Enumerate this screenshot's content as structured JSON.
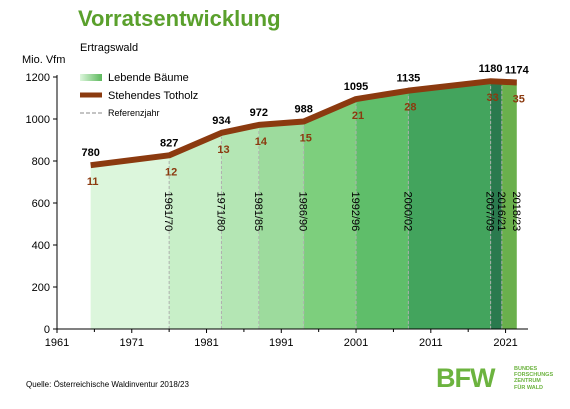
{
  "title": "Vorratsentwicklung",
  "subtitle": "Ertragswald",
  "source": "Quelle: Österreichische Waldinventur 2018/23",
  "logo": {
    "letters": "BFW",
    "lines": [
      "BUNDES",
      "FORSCHUNGS",
      "ZENTRUM",
      "FÜR WALD"
    ]
  },
  "chart_data": {
    "type": "area",
    "ylabel": "Mio. Vfm",
    "xlim": [
      1961,
      2024
    ],
    "ylim": [
      0,
      1200
    ],
    "x_ticks": [
      1961,
      1971,
      1981,
      1991,
      2001,
      2011,
      2021
    ],
    "y_ticks": [
      0,
      200,
      400,
      600,
      800,
      1000,
      1200
    ],
    "grid": false,
    "legend_position": "top-left",
    "legend": [
      {
        "label": "Lebende Bäume",
        "color": "#5cb85c"
      },
      {
        "label": "Stehendes Totholz",
        "color": "#8b3a0f"
      },
      {
        "label": "Referenzjahr",
        "color": "#a0a0a0"
      }
    ],
    "periods": [
      {
        "label": "1961/70",
        "start": 1965.5,
        "end": 1976,
        "total": 780,
        "deadwood": 11,
        "color": "#dcf6dc"
      },
      {
        "label": "1971/80",
        "start": 1976,
        "end": 1983,
        "total": 827,
        "deadwood": 12,
        "color": "#c8efc8"
      },
      {
        "label": "1981/85",
        "start": 1983,
        "end": 1988,
        "total": 934,
        "deadwood": 13,
        "color": "#b4e6b4"
      },
      {
        "label": "1986/90",
        "start": 1988,
        "end": 1994,
        "total": 972,
        "deadwood": 14,
        "color": "#9ddb9d"
      },
      {
        "label": "1992/96",
        "start": 1994,
        "end": 2001,
        "total": 988,
        "deadwood": 15,
        "color": "#7dcf7d"
      },
      {
        "label": "2000/02",
        "start": 2001,
        "end": 2008,
        "total": 1095,
        "deadwood": 21,
        "color": "#5fbe6a"
      },
      {
        "label": "2007/09",
        "start": 2008,
        "end": 2019,
        "total": 1135,
        "deadwood": 28,
        "color": "#43a45d"
      },
      {
        "label": "2016/21",
        "start": 2019,
        "end": 2020.5,
        "total": 1180,
        "deadwood": 33,
        "color": "#2a7a4e"
      },
      {
        "label": "2018/23",
        "start": 2020.5,
        "end": 2022.5,
        "total": 1174,
        "deadwood": 35,
        "color": "#6ab04c"
      }
    ],
    "total_line": [
      {
        "x": 1965.5,
        "y": 780
      },
      {
        "x": 1976,
        "y": 827
      },
      {
        "x": 1983,
        "y": 934
      },
      {
        "x": 1988,
        "y": 972
      },
      {
        "x": 1994,
        "y": 988
      },
      {
        "x": 2001,
        "y": 1095
      },
      {
        "x": 2008,
        "y": 1135
      },
      {
        "x": 2019,
        "y": 1180
      },
      {
        "x": 2022.5,
        "y": 1174
      }
    ],
    "reference_years": [
      1976,
      1983,
      1988,
      1994,
      2001,
      2008,
      2019,
      2020.5
    ]
  }
}
